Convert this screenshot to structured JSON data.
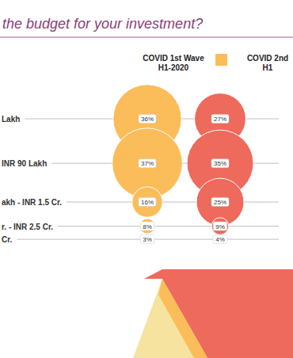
{
  "chart_data": {
    "type": "bubble",
    "title": "the budget for your investment?",
    "categories": [
      "Lakh",
      "INR 90 Lakh",
      "akh - INR 1.5 Cr.",
      "r. - INR 2.5 Cr.",
      "Cr."
    ],
    "series": [
      {
        "name": "COVID 1st Wave H1-2020",
        "color": "#fbbd5a",
        "values": [
          36,
          37,
          16,
          8,
          3
        ],
        "value_labels": [
          "36%",
          "37%",
          "16%",
          "8%",
          "3%"
        ]
      },
      {
        "name": "COVID 2nd H1",
        "color": "#ee6a5c",
        "values": [
          27,
          35,
          25,
          9,
          4
        ],
        "value_labels": [
          "27%",
          "35%",
          "25%",
          "9%",
          "4%"
        ]
      }
    ],
    "data_labels": true,
    "legend": "top"
  }
}
